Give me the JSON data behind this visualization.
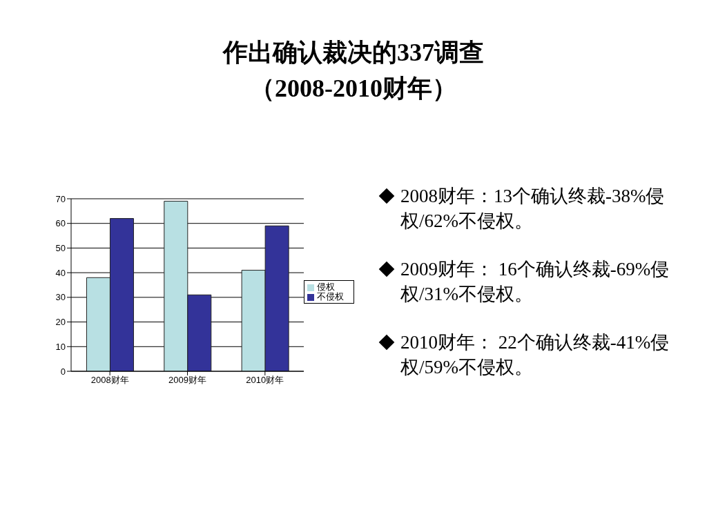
{
  "chart_data": {
    "type": "bar",
    "title": "作出确认裁决的337调查",
    "subtitle": "（2008-2010财年）",
    "categories": [
      "2008财年",
      "2009财年",
      "2010财年"
    ],
    "series": [
      {
        "name": "侵权",
        "color": "#b8e0e3",
        "values": [
          38,
          69,
          41
        ]
      },
      {
        "name": "不侵权",
        "color": "#333399",
        "values": [
          62,
          31,
          59
        ]
      }
    ],
    "ylim": [
      0,
      70
    ],
    "yticks": [
      0,
      10,
      20,
      30,
      40,
      50,
      60,
      70
    ],
    "grid": "y",
    "legend": "right",
    "annotations": [
      "2008财年：13个确认终裁-38%侵权/62%不侵权。",
      "2009财年： 16个确认终裁-69%侵权/31%不侵权。",
      "2010财年： 22个确认终裁-41%侵权/59%不侵权。"
    ]
  }
}
